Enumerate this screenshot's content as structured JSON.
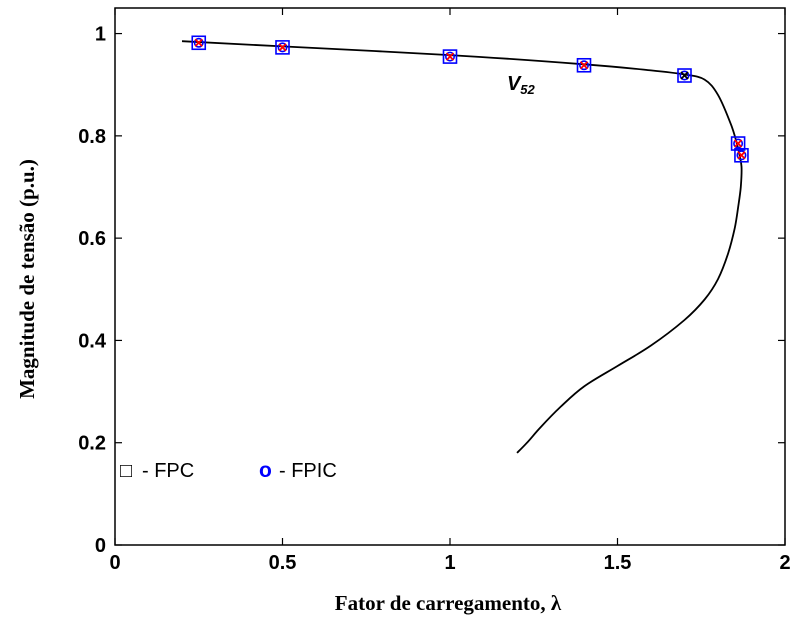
{
  "chart_data": {
    "type": "line",
    "title": "",
    "xlabel": "Fator de carregamento, λ",
    "ylabel": "Magnitude de tensão (p.u.)",
    "xlim": [
      0,
      2
    ],
    "ylim": [
      0,
      1.05
    ],
    "xticks": [
      0,
      0.5,
      1,
      1.5,
      2
    ],
    "xtick_labels": [
      "0",
      "0.5",
      "1",
      "1.5",
      "2"
    ],
    "yticks": [
      0,
      0.2,
      0.4,
      0.6,
      0.8,
      1
    ],
    "ytick_labels": [
      "0",
      "0.2",
      "0.4",
      "0.6",
      "0.8",
      "1"
    ],
    "grid": false,
    "legend_position": "bottom-left",
    "annotation": {
      "main": "V",
      "subscript": "52",
      "x": 1.17,
      "y": 0.89
    },
    "curve": {
      "color": "#000000",
      "x": [
        0.2,
        0.5,
        1.0,
        1.4,
        1.6,
        1.7,
        1.76,
        1.8,
        1.84,
        1.86,
        1.87,
        1.868,
        1.86,
        1.85,
        1.83,
        1.8,
        1.76,
        1.7,
        1.6,
        1.5,
        1.4,
        1.33,
        1.27,
        1.23,
        1.2
      ],
      "y": [
        0.985,
        0.975,
        0.958,
        0.94,
        0.928,
        0.92,
        0.91,
        0.88,
        0.82,
        0.775,
        0.74,
        0.7,
        0.66,
        0.62,
        0.57,
        0.52,
        0.48,
        0.44,
        0.39,
        0.35,
        0.31,
        0.27,
        0.23,
        0.2,
        0.18
      ]
    },
    "series": [
      {
        "name": "FPC",
        "marker": "square",
        "color": "#0000ff",
        "x": [
          0.25,
          0.5,
          1.0,
          1.4,
          1.7,
          1.86,
          1.87
        ],
        "y": [
          0.982,
          0.973,
          0.955,
          0.938,
          0.918,
          0.785,
          0.762
        ]
      },
      {
        "name": "FPIC",
        "marker": "circle",
        "color": "#0000ff",
        "x": [
          0.25,
          0.5,
          1.0,
          1.4,
          1.7,
          1.86,
          1.87
        ],
        "y": [
          0.982,
          0.973,
          0.955,
          0.938,
          0.918,
          0.785,
          0.762
        ]
      }
    ],
    "crosses": {
      "color": "#ff0000",
      "x": [
        0.25,
        0.5,
        1.0,
        1.4,
        1.86,
        1.87
      ],
      "y": [
        0.982,
        0.973,
        0.955,
        0.938,
        0.785,
        0.762
      ]
    },
    "crosses_black": {
      "color": "#000000",
      "x": [
        1.7
      ],
      "y": [
        0.918
      ]
    },
    "legend": [
      {
        "symbol": "□",
        "label": "- FPC",
        "symbol_color": "#0000ff"
      },
      {
        "symbol": "o",
        "label": "- FPIC",
        "symbol_color": "#0000ff"
      }
    ]
  }
}
